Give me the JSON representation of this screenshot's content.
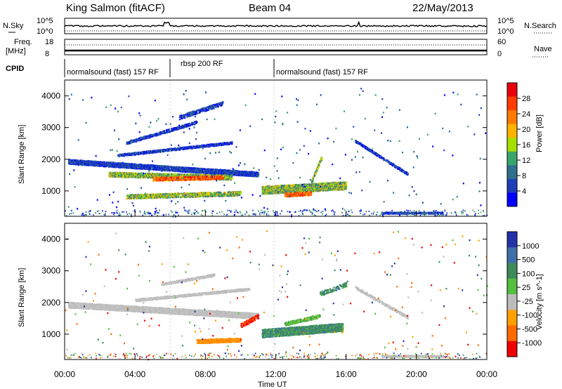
{
  "header": {
    "station": "King Salmon (fitACF)",
    "beam": "Beam 04",
    "date": "22/May/2013"
  },
  "aux_panels": {
    "nsky_label": "N.Sky",
    "nsearch_label": "N.Search",
    "freq_label": "Freq.",
    "freq_unit": "[MHz]",
    "nave_label": "Nave",
    "cpid_label": "CPID",
    "noise_left_ticks": [
      "10^5",
      "10^0"
    ],
    "noise_right_ticks": [
      "10^5",
      "10^0"
    ],
    "freq_ticks": [
      "18",
      "8"
    ],
    "nave_ticks": [
      "60",
      "0"
    ]
  },
  "cpid_segments": [
    {
      "label": "normalsound (fast) 157 RF",
      "start": 0,
      "end": 6.0
    },
    {
      "label": "rbsp 200 RF",
      "start": 6.0,
      "end": 11.9
    },
    {
      "label": "normalsound (fast) 157 RF",
      "start": 11.9,
      "end": 24
    }
  ],
  "colorbars": {
    "power": {
      "title": "Power [dB]",
      "ticks": [
        "28",
        "24",
        "20",
        "16",
        "12",
        "8",
        "4"
      ],
      "colors": [
        "#e8000b",
        "#ff3b00",
        "#ff7a00",
        "#ffb400",
        "#a6e000",
        "#3aa56a",
        "#2f6f8e",
        "#1f3fb8",
        "#0000ff"
      ]
    },
    "velocity": {
      "title": "Velocity [m s^-1]",
      "ticks": [
        "1000",
        "500",
        "100",
        "25",
        "-25",
        "-100",
        "-500",
        "-1000"
      ],
      "colors": [
        "#2233aa",
        "#3f6fa8",
        "#3f8a5a",
        "#55c040",
        "#bcbcbc",
        "#ffa000",
        "#ff6a00",
        "#ee0000"
      ]
    }
  },
  "chart_data": [
    {
      "type": "heatmap",
      "name": "power",
      "ylabel": "Slant Range [km]",
      "xlim": [
        0,
        24
      ],
      "ylim": [
        200,
        4500
      ],
      "yticks": [
        "1000",
        "2000",
        "3000",
        "4000"
      ],
      "regions": [
        {
          "t0": 0.2,
          "t1": 11.0,
          "r_start": 1950,
          "r_end": 1550,
          "width": 160,
          "level": "low",
          "density": 0.85
        },
        {
          "t0": 2.5,
          "t1": 9.5,
          "r_start": 1550,
          "r_end": 1450,
          "width": 160,
          "level": "mid",
          "density": 0.8
        },
        {
          "t0": 5.0,
          "t1": 9.0,
          "r_start": 1400,
          "r_end": 1450,
          "width": 120,
          "level": "high",
          "density": 0.75
        },
        {
          "t0": 3.0,
          "t1": 9.5,
          "r_start": 2150,
          "r_end": 2550,
          "width": 90,
          "level": "low",
          "density": 0.7
        },
        {
          "t0": 3.5,
          "t1": 7.5,
          "r_start": 2550,
          "r_end": 3200,
          "width": 110,
          "level": "low",
          "density": 0.7
        },
        {
          "t0": 6.5,
          "t1": 9.0,
          "r_start": 3350,
          "r_end": 3800,
          "width": 140,
          "level": "low",
          "density": 0.5
        },
        {
          "t0": 3.5,
          "t1": 10.0,
          "r_start": 850,
          "r_end": 950,
          "width": 150,
          "level": "mid",
          "density": 0.7
        },
        {
          "t0": 11.2,
          "t1": 16.0,
          "r_start": 1050,
          "r_end": 1200,
          "width": 260,
          "level": "mid",
          "density": 0.85
        },
        {
          "t0": 12.5,
          "t1": 14.0,
          "r_start": 900,
          "r_end": 950,
          "width": 120,
          "level": "high",
          "density": 0.85
        },
        {
          "t0": 14.0,
          "t1": 14.6,
          "r_start": 1300,
          "r_end": 2100,
          "width": 120,
          "level": "mid",
          "density": 0.7
        },
        {
          "t0": 16.5,
          "t1": 19.5,
          "r_start": 2600,
          "r_end": 1550,
          "width": 90,
          "level": "low",
          "density": 0.6
        },
        {
          "t0": 18.0,
          "t1": 21.5,
          "r_start": 330,
          "r_end": 330,
          "width": 60,
          "level": "low",
          "density": 0.7
        }
      ]
    },
    {
      "type": "heatmap",
      "name": "velocity",
      "ylabel": "Slant Range [km]",
      "xlabel": "Time UT",
      "xlim": [
        0,
        24
      ],
      "ylim": [
        200,
        4500
      ],
      "yticks": [
        "1000",
        "2000",
        "3000",
        "4000"
      ],
      "xticks": [
        "00:00",
        "04:00",
        "08:00",
        "12:00",
        "16:00",
        "20:00",
        "00:00"
      ],
      "regions": [
        {
          "t0": 0.2,
          "t1": 11.0,
          "r_start": 1950,
          "r_end": 1600,
          "width": 190,
          "level": "ground",
          "density": 0.9
        },
        {
          "t0": 4.0,
          "t1": 10.5,
          "r_start": 2100,
          "r_end": 2450,
          "width": 90,
          "level": "ground",
          "density": 0.7
        },
        {
          "t0": 5.5,
          "t1": 8.5,
          "r_start": 2600,
          "r_end": 2900,
          "width": 90,
          "level": "ground",
          "density": 0.6
        },
        {
          "t0": 7.5,
          "t1": 10.0,
          "r_start": 800,
          "r_end": 850,
          "width": 140,
          "level": "neg",
          "density": 0.8
        },
        {
          "t0": 10.0,
          "t1": 11.0,
          "r_start": 1300,
          "r_end": 1600,
          "width": 150,
          "level": "neg_strong",
          "density": 0.6
        },
        {
          "t0": 11.2,
          "t1": 15.8,
          "r_start": 1050,
          "r_end": 1250,
          "width": 270,
          "level": "pos",
          "density": 0.85
        },
        {
          "t0": 12.5,
          "t1": 14.5,
          "r_start": 1350,
          "r_end": 1600,
          "width": 120,
          "level": "pos_light",
          "density": 0.6
        },
        {
          "t0": 14.5,
          "t1": 16.0,
          "r_start": 2300,
          "r_end": 2600,
          "width": 150,
          "level": "pos",
          "density": 0.5
        },
        {
          "t0": 16.5,
          "t1": 19.5,
          "r_start": 2500,
          "r_end": 1550,
          "width": 90,
          "level": "ground",
          "density": 0.6
        },
        {
          "t0": 18.0,
          "t1": 21.5,
          "r_start": 330,
          "r_end": 330,
          "width": 60,
          "level": "ground",
          "density": 0.7
        }
      ]
    }
  ]
}
